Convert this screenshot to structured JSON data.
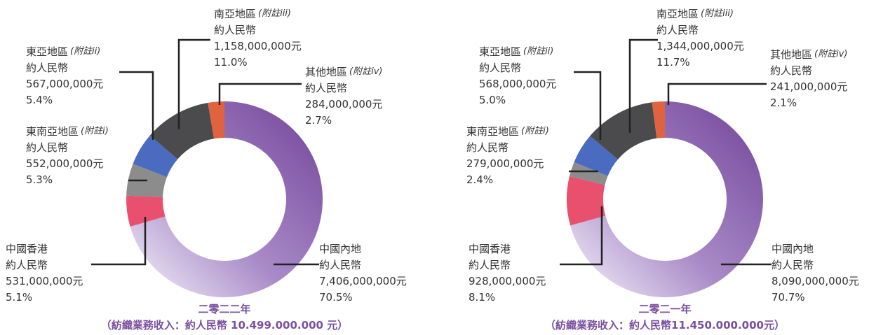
{
  "chart_data": [
    {
      "type": "pie",
      "donut": true,
      "title": "二零二二年",
      "subtitle": "（紡織業務收入：約人民幣 10.499.000.000 元）",
      "currency_prefix": "約人民幣",
      "categories": [
        "中國內地",
        "中國香港",
        "東南亞地區",
        "東亞地區",
        "南亞地區",
        "其他地區"
      ],
      "notes": [
        null,
        null,
        "(附註i)",
        "(附註ii)",
        "(附註iii)",
        "(附註iv)"
      ],
      "amounts": [
        "7,406,000,000元",
        "531,000,000元",
        "552,000,000元",
        "567,000,000元",
        "1,158,000,000元",
        "284,000,000元"
      ],
      "values": [
        70.5,
        5.1,
        5.3,
        5.4,
        11.0,
        2.7
      ],
      "value_labels": [
        "70.5%",
        "5.1%",
        "5.3%",
        "5.4%",
        "11.0%",
        "2.7%"
      ],
      "colors": [
        "#7b4fa0",
        "#e8506e",
        "#8c8c8c",
        "#4a6bbf",
        "#4b4b4d",
        "#e0623f"
      ]
    },
    {
      "type": "pie",
      "donut": true,
      "title": "二零二一年",
      "subtitle": "（紡織業務收入：約人民幣11.450.000.000元）",
      "currency_prefix": "約人民幣",
      "categories": [
        "中國內地",
        "中國香港",
        "東南亞地區",
        "東亞地區",
        "南亞地區",
        "其他地區"
      ],
      "notes": [
        null,
        null,
        "(附註i)",
        "(附註ii)",
        "(附註iii)",
        "(附註iv)"
      ],
      "amounts": [
        "8,090,000,000元",
        "928,000,000元",
        "279,000,000元",
        "568,000,000元",
        "1,344,000,000元",
        "241,000,000元"
      ],
      "values": [
        70.7,
        8.1,
        2.4,
        5.0,
        11.7,
        2.1
      ],
      "value_labels": [
        "70.7%",
        "8.1%",
        "2.4%",
        "5.0%",
        "11.7%",
        "2.1%"
      ],
      "colors": [
        "#7b4fa0",
        "#e8506e",
        "#8c8c8c",
        "#4a6bbf",
        "#4b4b4d",
        "#e0623f"
      ]
    }
  ]
}
